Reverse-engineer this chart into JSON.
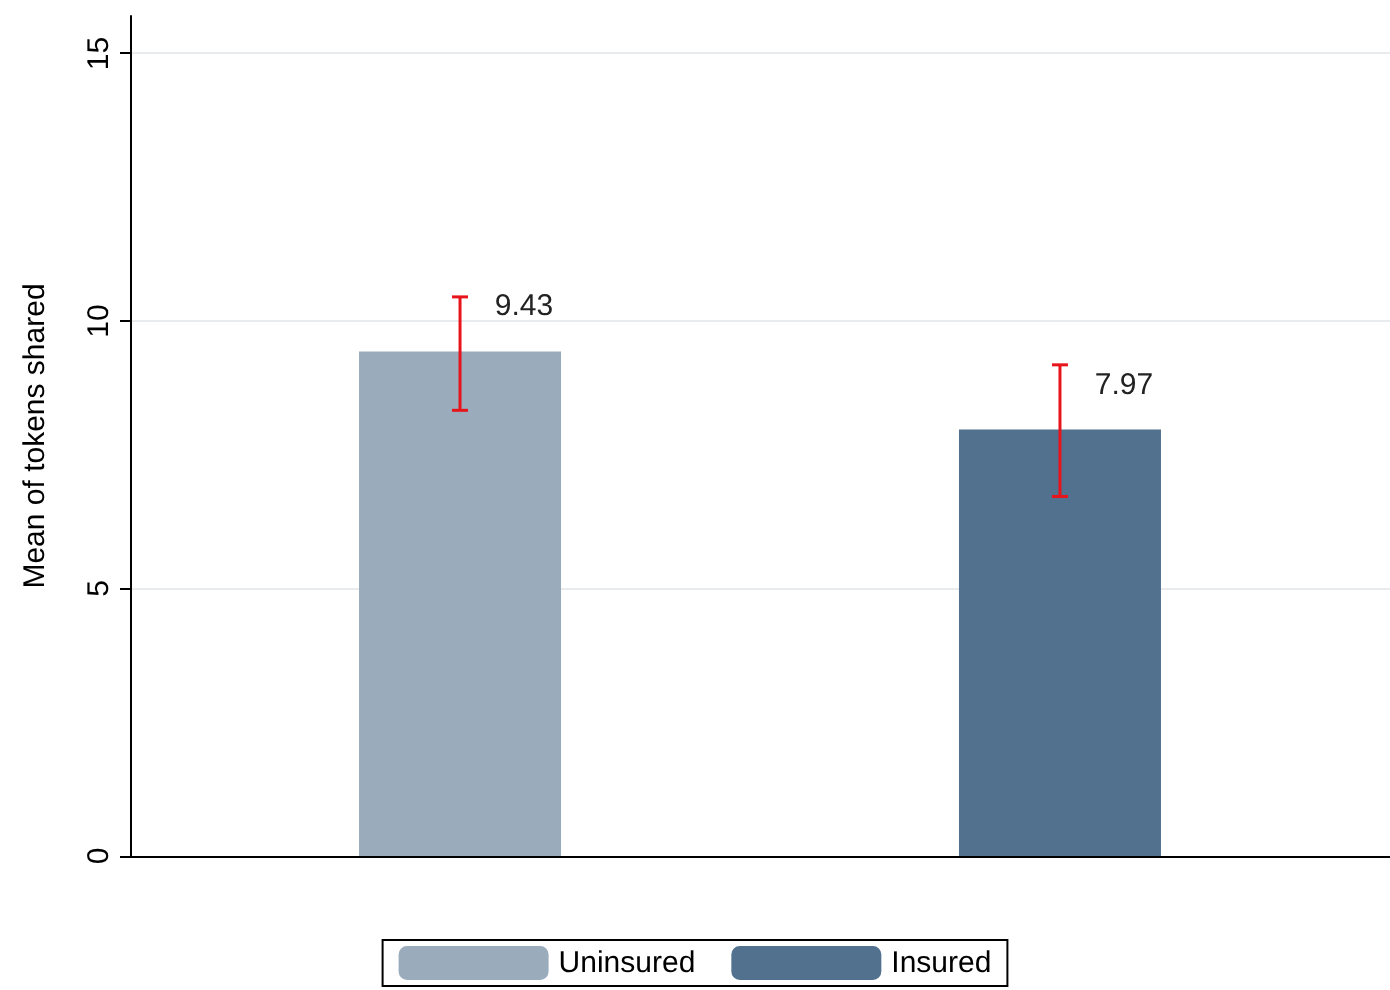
{
  "chart_data": {
    "type": "bar",
    "ylabel": "Mean of tokens shared",
    "categories": [
      null
    ],
    "series": [
      {
        "name": "Uninsured",
        "color": "#9aabbc",
        "values": [
          9.43
        ],
        "errors": [
          [
            8.33,
            10.45
          ]
        ]
      },
      {
        "name": "Insured",
        "color": "#51718f",
        "values": [
          7.97
        ],
        "errors": [
          [
            6.72,
            9.18
          ]
        ]
      }
    ],
    "ylim": [
      0,
      15.7
    ],
    "yticks": [
      0,
      5,
      10,
      15
    ],
    "grid": "y",
    "legend": "bottom",
    "data_labels": true
  }
}
